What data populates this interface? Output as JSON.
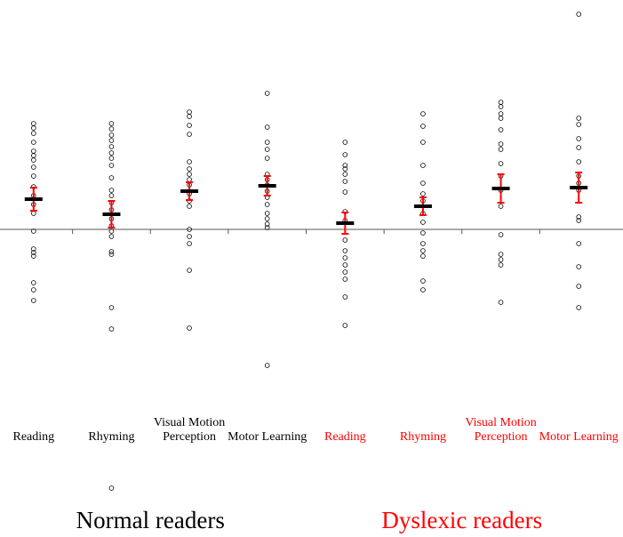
{
  "chart_data": {
    "type": "dotplot",
    "categories": [
      "Reading",
      "Rhyming",
      "Visual Motion Perception",
      "Motor Learning",
      "Reading",
      "Rhyming",
      "Visual Motion Perception",
      "Motor Learning"
    ],
    "category_colors": [
      "#000000",
      "#000000",
      "#000000",
      "#000000",
      "#ff0000",
      "#ff0000",
      "#ff0000",
      "#ff0000"
    ],
    "points": [
      [
        1.19,
        1.14,
        1.08,
        0.98,
        0.88,
        0.83,
        0.78,
        0.7,
        0.6,
        0.48,
        0.38,
        0.28,
        0.18,
        -0.02,
        -0.22,
        -0.26,
        -0.3,
        -0.6,
        -0.68,
        -0.8
      ],
      [
        1.19,
        1.13,
        1.06,
        1.0,
        0.93,
        0.86,
        0.8,
        0.72,
        0.58,
        0.44,
        0.38,
        0.3,
        0.22,
        0.12,
        0.04,
        -0.02,
        -0.08,
        -0.25,
        -0.28,
        -0.88,
        -1.12,
        -2.91
      ],
      [
        1.32,
        1.27,
        1.17,
        1.07,
        0.76,
        0.68,
        0.62,
        0.56,
        0.5,
        0.4,
        0.32,
        0.26,
        0,
        -0.08,
        -0.16,
        -0.46,
        -1.11
      ],
      [
        1.53,
        1.15,
        0.98,
        0.9,
        0.8,
        0.62,
        0.56,
        0.5,
        0.43,
        0.36,
        0.28,
        0.18,
        0.12,
        0.06,
        0.02,
        -1.53
      ],
      [
        0.98,
        0.84,
        0.72,
        0.68,
        0.62,
        0.54,
        0.42,
        0.2,
        0.1,
        -0.12,
        -0.24,
        -0.32,
        -0.4,
        -0.48,
        -0.56,
        -0.76,
        -1.08
      ],
      [
        1.3,
        1.16,
        0.98,
        0.72,
        0.52,
        0.4,
        0.32,
        0.18,
        0.08,
        -0.04,
        -0.16,
        -0.24,
        -0.3,
        -0.58,
        -0.68
      ],
      [
        1.43,
        1.38,
        1.3,
        1.25,
        1.12,
        0.96,
        0.9,
        0.74,
        0.6,
        0.44,
        0.26,
        -0.06,
        -0.28,
        -0.34,
        -0.4,
        -0.82
      ],
      [
        2.42,
        1.25,
        1.18,
        1.02,
        0.92,
        0.76,
        0.6,
        0.52,
        0.44,
        0.14,
        0.1,
        -0.16,
        -0.42,
        -0.64,
        -0.88
      ]
    ],
    "means": [
      0.34,
      0.17,
      0.43,
      0.49,
      0.07,
      0.26,
      0.46,
      0.47
    ],
    "errors": [
      0.13,
      0.15,
      0.1,
      0.11,
      0.12,
      0.1,
      0.16,
      0.17
    ],
    "mean_color": "#000000",
    "error_color": "#ff0000",
    "axhline": 0,
    "ylim": [
      -3.46,
      2.58
    ],
    "groups": [
      {
        "label": "Normal readers",
        "color": "#000000"
      },
      {
        "label": "Dyslexic readers",
        "color": "#ff0000"
      }
    ]
  }
}
